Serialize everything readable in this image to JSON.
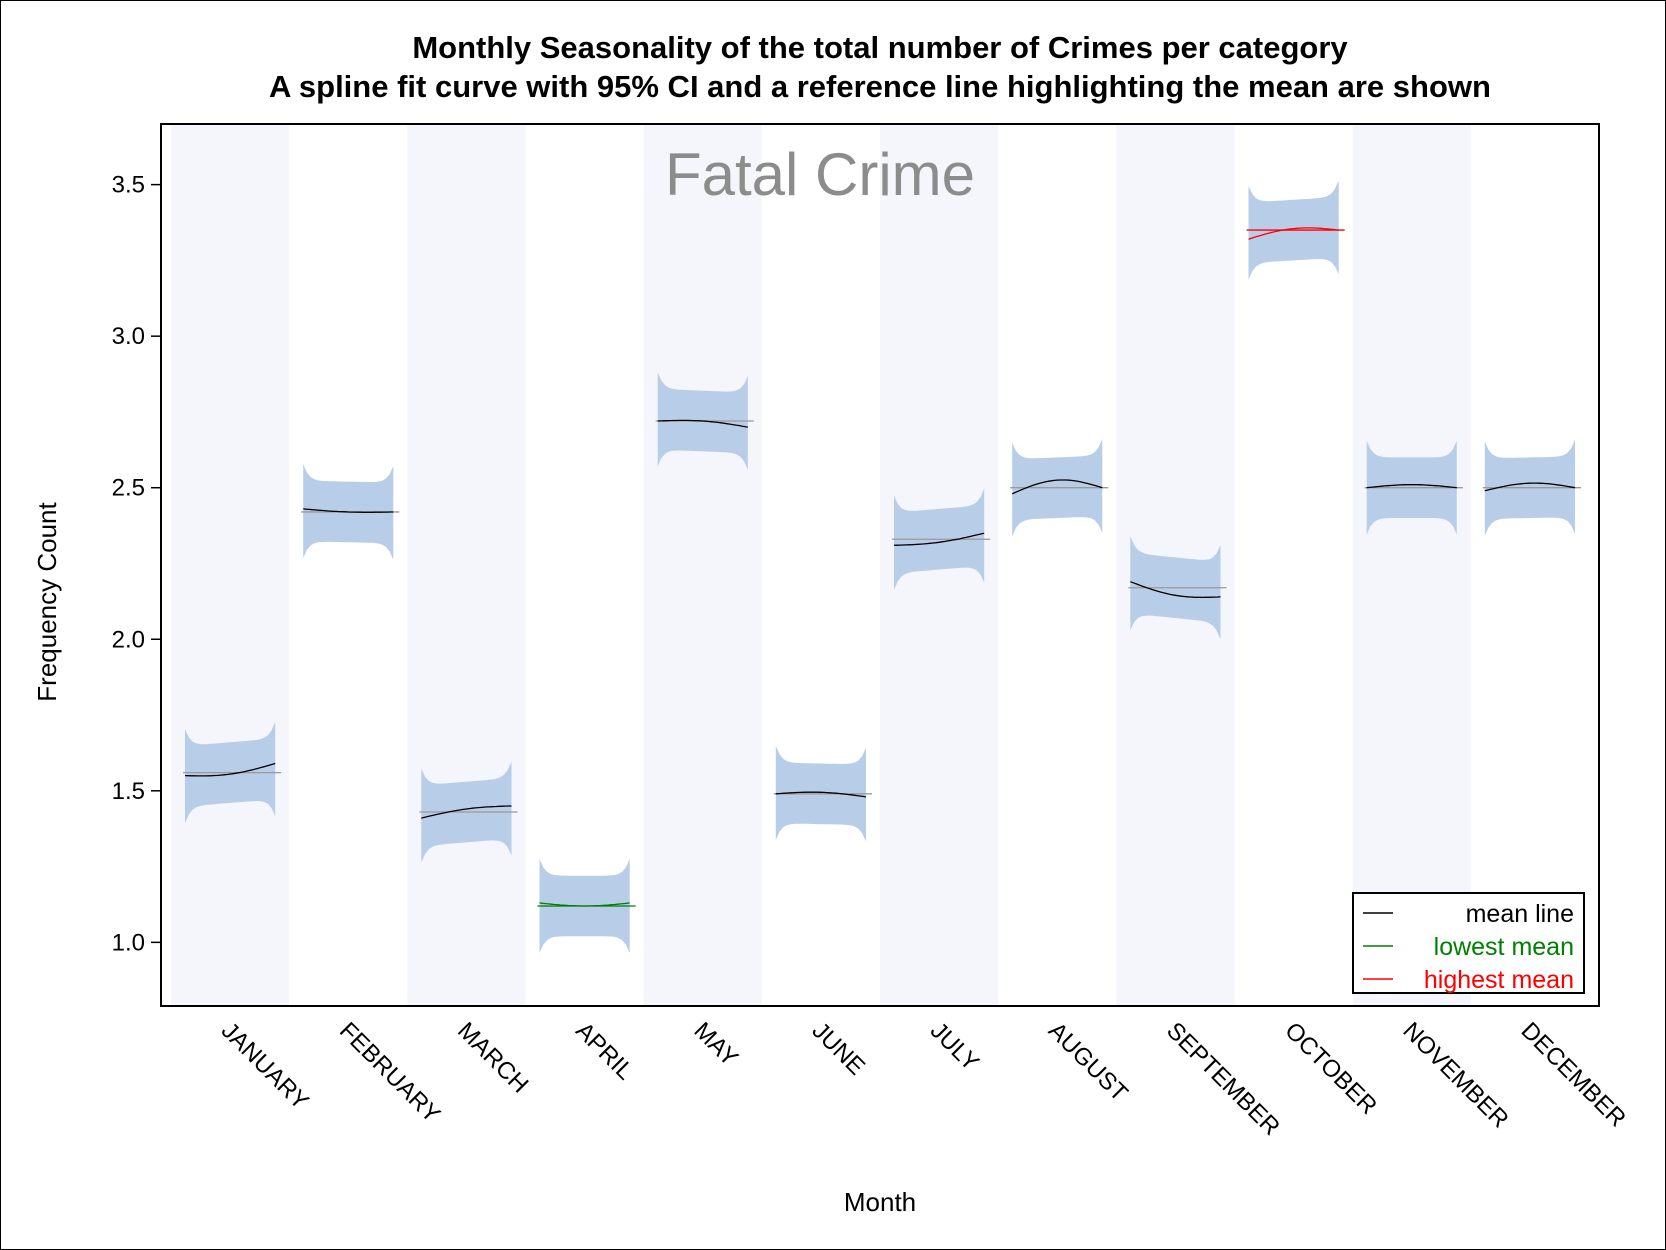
{
  "chart_data": {
    "type": "line",
    "title": "Monthly Seasonality of the total number of Crimes per category",
    "subtitle": "A spline fit curve with 95% CI and a reference line highlighting the mean are shown",
    "panel_label": "Fatal Crime",
    "xlabel": "Month",
    "ylabel": "Frequency Count",
    "ylim": [
      0.79,
      3.7
    ],
    "yticks": [
      "1.0",
      "1.5",
      "2.0",
      "2.5",
      "3.0",
      "3.5"
    ],
    "ytick_values": [
      1.0,
      1.5,
      2.0,
      2.5,
      3.0,
      3.5
    ],
    "categories": [
      "JANUARY",
      "FEBRUARY",
      "MARCH",
      "APRIL",
      "MAY",
      "JUNE",
      "JULY",
      "AUGUST",
      "SEPTEMBER",
      "OCTOBER",
      "NOVEMBER",
      "DECEMBER"
    ],
    "means": [
      1.56,
      2.42,
      1.43,
      1.12,
      2.72,
      1.49,
      2.33,
      2.5,
      2.17,
      3.35,
      2.5,
      2.5
    ],
    "spline_start": [
      1.55,
      2.43,
      1.41,
      1.13,
      2.72,
      1.49,
      2.31,
      2.48,
      2.19,
      3.32,
      2.5,
      2.49
    ],
    "spline_end": [
      1.59,
      2.42,
      1.45,
      1.13,
      2.7,
      1.48,
      2.35,
      2.5,
      2.14,
      3.35,
      2.5,
      2.5
    ],
    "spline_wiggle": [
      -0.015,
      -0.005,
      0.01,
      -0.01,
      0.01,
      0.01,
      -0.01,
      0.035,
      -0.02,
      0.02,
      0.01,
      0.02
    ],
    "ci_halfwidth": [
      0.1,
      0.1,
      0.1,
      0.1,
      0.1,
      0.1,
      0.1,
      0.1,
      0.1,
      0.1,
      0.1,
      0.1
    ],
    "highlight": {
      "lowest": 3,
      "highest": 9
    },
    "legend": {
      "position": "bottom-right",
      "items": [
        {
          "label": "mean line",
          "color": "#000000"
        },
        {
          "label": "lowest mean",
          "color": "#008000"
        },
        {
          "label": "highest mean",
          "color": "#ff0000"
        }
      ]
    },
    "colors": {
      "band": "#b8cde8",
      "stripe": "#f4f6fb",
      "mean_ref": "#9a9a9a",
      "spline": "#000000"
    },
    "grid": false
  }
}
